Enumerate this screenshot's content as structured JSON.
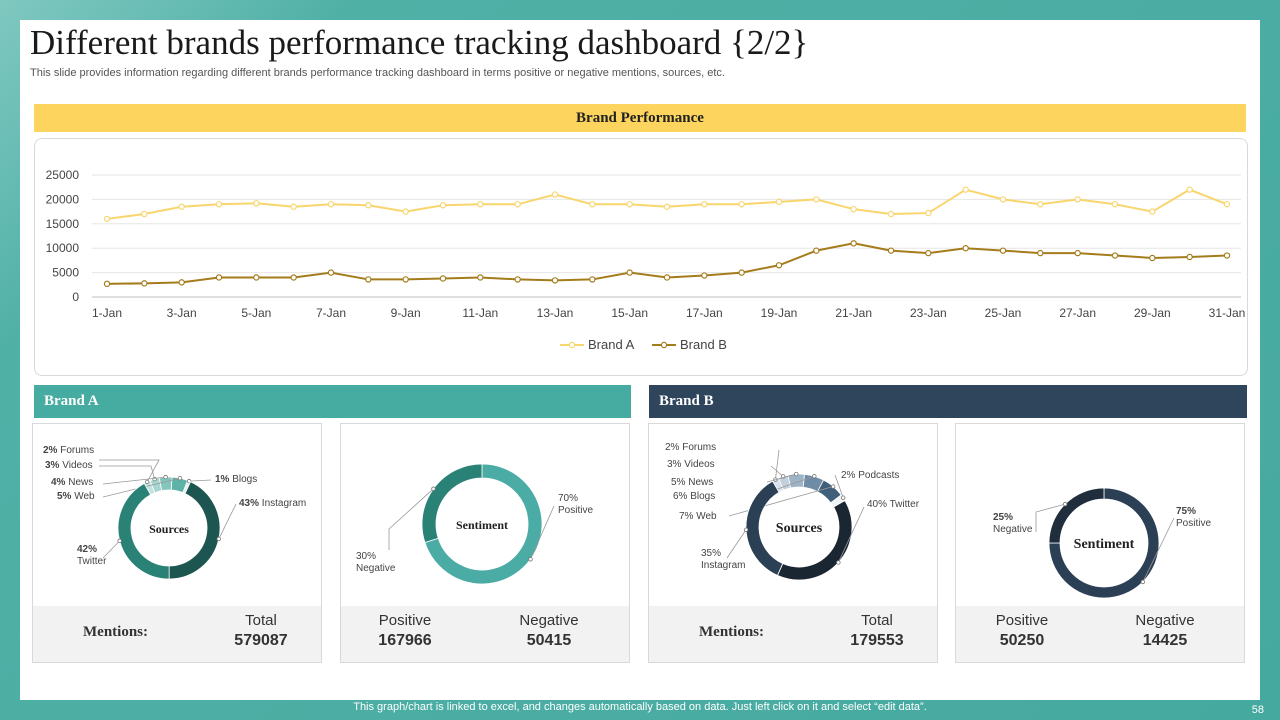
{
  "title": "Different brands performance tracking dashboard {2/2}",
  "subtitle": "This slide provides information regarding different brands performance tracking dashboard in terms positive or negative mentions, sources, etc.",
  "brand_performance": {
    "header": "Brand Performance"
  },
  "chart_data": [
    {
      "type": "line",
      "title": "",
      "x": [
        "1-Jan",
        "2-Jan",
        "3-Jan",
        "4-Jan",
        "5-Jan",
        "6-Jan",
        "7-Jan",
        "8-Jan",
        "9-Jan",
        "10-Jan",
        "11-Jan",
        "12-Jan",
        "13-Jan",
        "14-Jan",
        "15-Jan",
        "16-Jan",
        "17-Jan",
        "18-Jan",
        "19-Jan",
        "20-Jan",
        "21-Jan",
        "22-Jan",
        "23-Jan",
        "24-Jan",
        "25-Jan",
        "26-Jan",
        "27-Jan",
        "28-Jan",
        "29-Jan",
        "30-Jan",
        "31-Jan"
      ],
      "x_tick_labels": [
        "1-Jan",
        "3-Jan",
        "5-Jan",
        "7-Jan",
        "9-Jan",
        "11-Jan",
        "13-Jan",
        "15-Jan",
        "17-Jan",
        "19-Jan",
        "21-Jan",
        "23-Jan",
        "25-Jan",
        "27-Jan",
        "29-Jan",
        "31-Jan"
      ],
      "y_ticks": [
        0,
        5000,
        10000,
        15000,
        20000,
        25000
      ],
      "ylim": [
        0,
        25000
      ],
      "grid": true,
      "legend": "bottom",
      "series": [
        {
          "name": "Brand A",
          "color": "#f9d56e",
          "values": [
            16000,
            17000,
            18500,
            19000,
            19200,
            18500,
            19000,
            18800,
            17500,
            18800,
            19000,
            19000,
            21000,
            19000,
            19000,
            18500,
            19000,
            19000,
            19500,
            20000,
            18000,
            17000,
            17200,
            22000,
            20000,
            19000,
            20000,
            19000,
            17500,
            22000,
            19000
          ]
        },
        {
          "name": "Brand B",
          "color": "#a57c1b",
          "values": [
            2700,
            2800,
            3000,
            4000,
            4000,
            4000,
            5000,
            3600,
            3600,
            3800,
            4000,
            3600,
            3400,
            3600,
            5000,
            4000,
            4400,
            5000,
            6500,
            9500,
            11000,
            9500,
            9000,
            10000,
            9500,
            9000,
            9000,
            8500,
            8000,
            8200,
            8500
          ]
        }
      ]
    },
    {
      "type": "pie",
      "title": "Sources",
      "labels": [
        {
          "pct": "2%",
          "name": "Forums",
          "value": 2,
          "color": "#c3e4df"
        },
        {
          "pct": "3%",
          "name": "Videos",
          "value": 3,
          "color": "#a6d6cf"
        },
        {
          "pct": "4%",
          "name": "News",
          "value": 4,
          "color": "#84c5bc"
        },
        {
          "pct": "5%",
          "name": "Web",
          "value": 5,
          "color": "#5eb2a8"
        },
        {
          "pct": "1%",
          "name": "Blogs",
          "value": 1,
          "color": "#e1f2ef"
        },
        {
          "pct": "43%",
          "name": "Instagram",
          "value": 43,
          "color": "#1d5650"
        },
        {
          "pct": "42%",
          "name": "Twitter",
          "value": 42,
          "color": "#2a8277"
        }
      ]
    },
    {
      "type": "pie",
      "title": "Sentiment",
      "labels": [
        {
          "pct": "70%",
          "name": "Positive",
          "value": 70,
          "color": "#4aaca4"
        },
        {
          "pct": "30%",
          "name": "Negative",
          "value": 30,
          "color": "#2a8277"
        }
      ]
    },
    {
      "type": "pie",
      "title": "Sources",
      "labels": [
        {
          "pct": "2%",
          "name": "Forums",
          "value": 2,
          "color": "#d8e2ea"
        },
        {
          "pct": "3%",
          "name": "Videos",
          "value": 3,
          "color": "#c2d1dd"
        },
        {
          "pct": "5%",
          "name": "News",
          "value": 5,
          "color": "#9db3c6"
        },
        {
          "pct": "6%",
          "name": "Blogs",
          "value": 6,
          "color": "#6f8ca6"
        },
        {
          "pct": "7%",
          "name": "Web",
          "value": 7,
          "color": "#3f5f7b"
        },
        {
          "pct": "2%",
          "name": "Podcasts",
          "value": 2,
          "color": "#eef3f6"
        },
        {
          "pct": "40%",
          "name": "Twitter",
          "value": 40,
          "color": "#1b2633"
        },
        {
          "pct": "35%",
          "name": "Instagram",
          "value": 35,
          "color": "#2b3f55"
        }
      ]
    },
    {
      "type": "pie",
      "title": "Sentiment",
      "labels": [
        {
          "pct": "75%",
          "name": "Positive",
          "value": 75,
          "color": "#2b3f55"
        },
        {
          "pct": "25%",
          "name": "Negative",
          "value": 25,
          "color": "#1f2d3d"
        }
      ]
    }
  ],
  "brand_a": {
    "header": "Brand A",
    "mentions_label": "Mentions:",
    "total_label": "Total",
    "total_value": "579087",
    "positive_label": "Positive",
    "positive_value": "167966",
    "negative_label": "Negative",
    "negative_value": "50415"
  },
  "brand_b": {
    "header": "Brand B",
    "mentions_label": "Mentions:",
    "total_label": "Total",
    "total_value": "179553",
    "positive_label": "Positive",
    "positive_value": "50250",
    "negative_label": "Negative",
    "negative_value": "14425"
  },
  "colors": {
    "teal": "#46aca2",
    "navy": "#2e455c",
    "yellow": "#fcd45e"
  },
  "footer_note": "This graph/chart is linked to excel,  and changes automatically based on data. Just left click on it and select “edit data”.",
  "page_number": "58"
}
